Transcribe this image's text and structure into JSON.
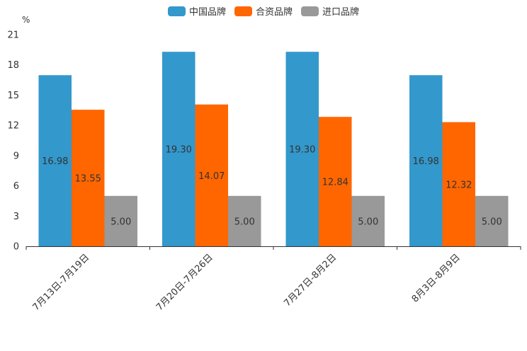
{
  "chart_data": {
    "type": "bar",
    "unit": "%",
    "categories": [
      "7月13日-7月19日",
      "7月20日-7月26日",
      "7月27日-8月2日",
      "8月3日-8月9日"
    ],
    "series": [
      {
        "name": "中国品牌",
        "color": "#3398CC",
        "values": [
          16.98,
          19.3,
          19.3,
          16.98
        ]
      },
      {
        "name": "合资品牌",
        "color": "#FF6600",
        "values": [
          13.55,
          14.07,
          12.84,
          12.32
        ]
      },
      {
        "name": "进口品牌",
        "color": "#999999",
        "values": [
          5.0,
          5.0,
          5.0,
          5.0
        ]
      }
    ],
    "value_labels": [
      [
        "16.98",
        "19.30",
        "19.30",
        "16.98"
      ],
      [
        "13.55",
        "14.07",
        "12.84",
        "12.32"
      ],
      [
        "5.00",
        "5.00",
        "5.00",
        "5.00"
      ]
    ],
    "yticks": [
      "0",
      "3",
      "6",
      "9",
      "12",
      "15",
      "18",
      "21"
    ],
    "ylim": [
      0,
      21
    ],
    "legend_position": "top-center",
    "grid": false
  }
}
